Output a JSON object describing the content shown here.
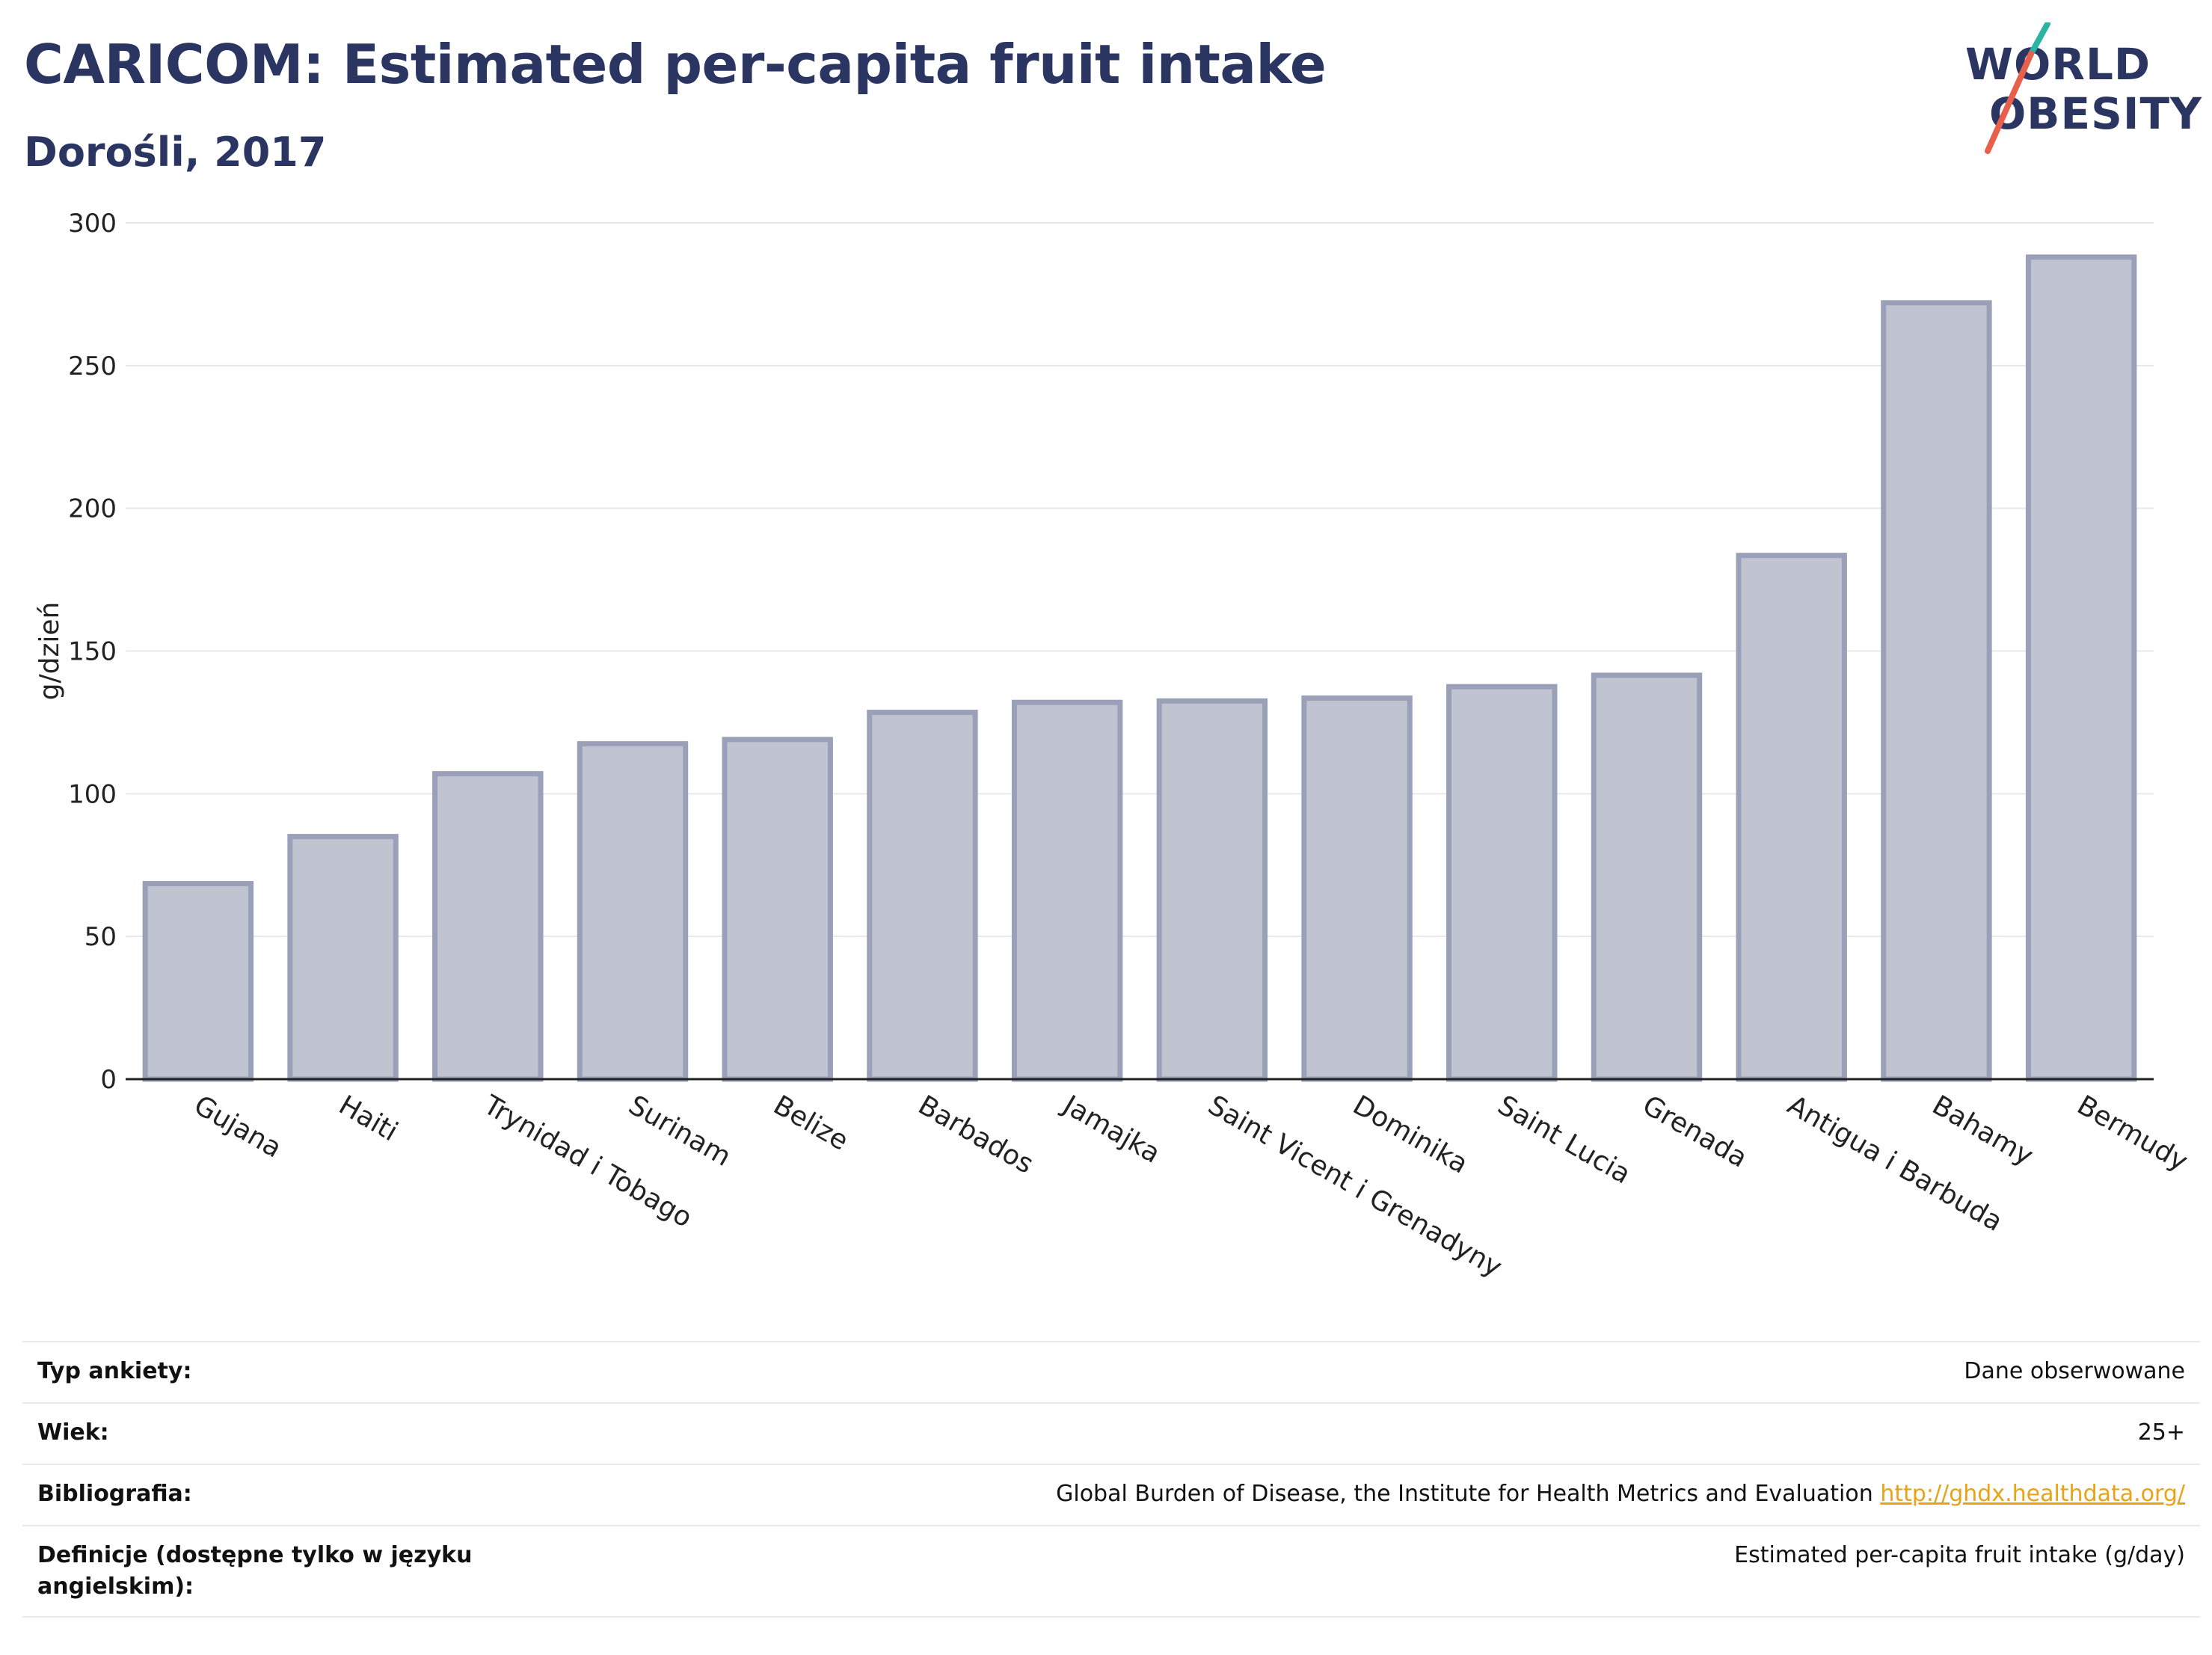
{
  "header": {
    "title": "CARICOM: Estimated per-capita fruit intake",
    "subtitle": "Dorośli, 2017"
  },
  "logo": {
    "line1": "WORLD",
    "line2": "OBESITY"
  },
  "colors": {
    "bar_fill": "#c0c4d1",
    "bar_stroke": "#9aa0b8",
    "text": "#2b3562",
    "link": "#e8a317",
    "logo_slash_teal": "#2bb3a3",
    "logo_slash_red": "#e8604c"
  },
  "chart_data": {
    "type": "bar",
    "title": "CARICOM: Estimated per-capita fruit intake",
    "subtitle": "Dorośli, 2017",
    "xlabel": "",
    "ylabel": "g/dzień",
    "ylim": [
      0,
      300
    ],
    "yticks": [
      0,
      50,
      100,
      150,
      200,
      250,
      300
    ],
    "grid": true,
    "categories": [
      "Gujana",
      "Haiti",
      "Trynidad i Tobago",
      "Surinam",
      "Belize",
      "Barbados",
      "Jamajka",
      "Saint Vicent i Grenadyny",
      "Dominika",
      "Saint Lucia",
      "Grenada",
      "Antigua i Barbuda",
      "Bahamy",
      "Bermudy"
    ],
    "values": [
      68.5,
      85,
      107,
      117.5,
      119,
      128.5,
      132,
      132.5,
      133.5,
      137.5,
      141.5,
      183.5,
      272,
      288
    ]
  },
  "info": [
    {
      "label": "Typ ankiety:",
      "value": "Dane obserwowane"
    },
    {
      "label": "Wiek:",
      "value": "25+"
    },
    {
      "label": "Bibliografia:",
      "value": "Global Burden of Disease, the Institute for Health Metrics and Evaluation",
      "link": "http://ghdx.healthdata.org/"
    },
    {
      "label": "Definicje (dostępne tylko w języku angielskim):",
      "value": "Estimated per-capita fruit intake (g/day)"
    }
  ]
}
